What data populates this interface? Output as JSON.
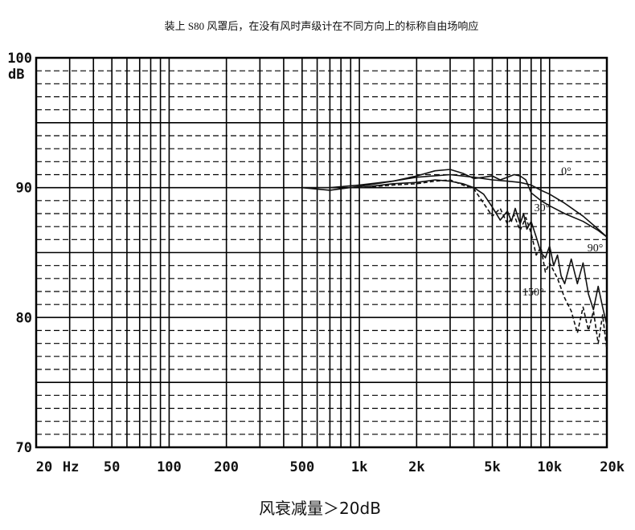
{
  "chart_data": {
    "type": "line",
    "title": "装上 S80 风罩后，在没有风时声级计在不同方向上的标称自由场响应",
    "ylim": [
      70,
      100
    ],
    "xlim": [
      20,
      20000
    ],
    "xscale": "log",
    "grid": true,
    "y_ticks": [
      {
        "value": 100,
        "label": "100"
      },
      {
        "value": 90,
        "label": "90"
      },
      {
        "value": 80,
        "label": "80"
      },
      {
        "value": 70,
        "label": "70"
      }
    ],
    "y_unit": "dB",
    "x_ticks": [
      {
        "value": 20,
        "label": "20"
      },
      {
        "value": 50,
        "label": "50"
      },
      {
        "value": 100,
        "label": "100"
      },
      {
        "value": 200,
        "label": "200"
      },
      {
        "value": 500,
        "label": "500"
      },
      {
        "value": 1000,
        "label": "1k"
      },
      {
        "value": 2000,
        "label": "2k"
      },
      {
        "value": 5000,
        "label": "5k"
      },
      {
        "value": 10000,
        "label": "10k"
      },
      {
        "value": 20000,
        "label": "20k"
      }
    ],
    "x_unit": "Hz",
    "series": [
      {
        "name": "0°",
        "stroke": "solid",
        "x": [
          500,
          700,
          1000,
          1500,
          2000,
          3000,
          4000,
          5000,
          6000,
          7000,
          8000,
          9000,
          10000,
          12000,
          15000,
          18000,
          20000
        ],
        "y": [
          90.0,
          90.0,
          90.2,
          90.5,
          90.8,
          91.0,
          90.8,
          90.6,
          90.5,
          90.4,
          90.2,
          89.8,
          89.5,
          88.8,
          87.8,
          86.8,
          86.2
        ]
      },
      {
        "name": "30°",
        "stroke": "solid",
        "x": [
          500,
          700,
          1000,
          1500,
          2000,
          2500,
          3000,
          3500,
          4000,
          4500,
          5000,
          5500,
          6000,
          6500,
          7000,
          7500,
          8000,
          9000,
          10000,
          12000,
          15000,
          18000,
          20000
        ],
        "y": [
          90.0,
          89.8,
          90.1,
          90.5,
          90.9,
          91.3,
          91.4,
          91.1,
          90.7,
          90.8,
          90.9,
          90.6,
          90.8,
          91.0,
          90.9,
          90.6,
          89.6,
          89.0,
          88.6,
          88.0,
          87.4,
          86.7,
          86.2
        ]
      },
      {
        "name": "90°",
        "stroke": "solid",
        "x": [
          1000,
          1500,
          2000,
          2500,
          3000,
          3500,
          4000,
          4500,
          5000,
          5500,
          6000,
          6300,
          6600,
          7000,
          7300,
          7600,
          8000,
          8500,
          9000,
          9500,
          10000,
          10500,
          11000,
          11500,
          12000,
          13000,
          14000,
          15000,
          16000,
          17000,
          18000,
          19000,
          20000
        ],
        "y": [
          90.0,
          90.3,
          90.4,
          90.6,
          90.5,
          90.3,
          90.0,
          89.5,
          88.5,
          87.5,
          88.2,
          87.4,
          88.4,
          87.2,
          88.0,
          86.8,
          87.4,
          86.2,
          85.0,
          84.6,
          85.5,
          84.0,
          84.8,
          83.2,
          82.6,
          84.5,
          82.6,
          84.2,
          81.8,
          80.6,
          82.4,
          80.8,
          79.4
        ]
      },
      {
        "name": "150°",
        "stroke": "dashed",
        "x": [
          1000,
          1500,
          2000,
          2500,
          3000,
          3500,
          4000,
          4500,
          5000,
          5500,
          6000,
          6500,
          7000,
          7500,
          8000,
          8500,
          9000,
          9500,
          10000,
          11000,
          12000,
          13000,
          14000,
          15000,
          16000,
          17000,
          18000,
          19000,
          20000
        ],
        "y": [
          90.0,
          90.2,
          90.3,
          90.5,
          90.6,
          90.2,
          89.9,
          88.8,
          87.8,
          88.4,
          87.2,
          87.9,
          86.7,
          87.7,
          86.5,
          84.8,
          85.4,
          83.5,
          84.2,
          83.0,
          81.5,
          80.5,
          78.8,
          80.8,
          79.0,
          80.5,
          78.0,
          80.2,
          77.5
        ]
      }
    ],
    "annotations": [
      {
        "text": "0°",
        "series": "0°"
      },
      {
        "text": "30°",
        "series": "30°"
      },
      {
        "text": "90°",
        "series": "90°"
      },
      {
        "text": "150°",
        "series": "150°"
      }
    ],
    "footnote": "风衰减量＞20dB"
  }
}
